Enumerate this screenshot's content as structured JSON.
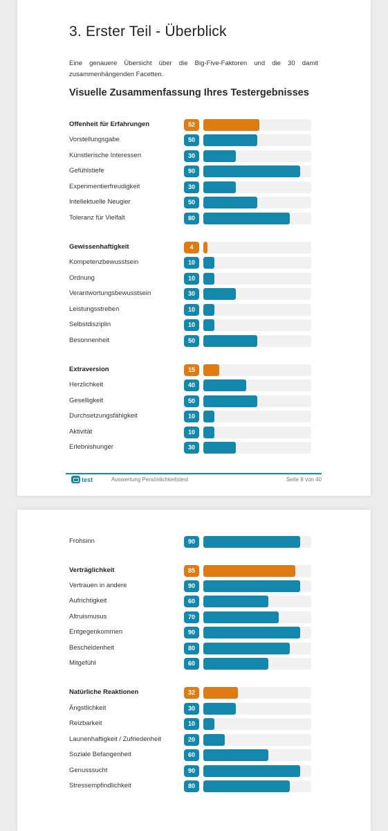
{
  "page1": {
    "heading": "3. Erster Teil - Überblick",
    "intro": "Eine genauere Übersicht über die Big-Five-Faktoren und die 30 damit zusammenhängenden Facetten.",
    "subheading": "Visuelle Zusammenfassung Ihres Testergebnisses",
    "footer": {
      "logo_text": "test",
      "doc_title": "Auswertung Persönlichkeitstest",
      "page_label": "Seite 8 von 40"
    }
  },
  "colors": {
    "factor": "#e07b14",
    "facet": "#1487ad",
    "track": "#f1f1f1"
  },
  "chart_data": {
    "type": "bar",
    "orientation": "horizontal",
    "xlim": [
      0,
      100
    ],
    "groups": [
      {
        "factor": "Offenheit für Erfahrungen",
        "value": 52,
        "facets": [
          {
            "label": "Vorstellungsgabe",
            "value": 50
          },
          {
            "label": "Künstlerische Interessen",
            "value": 30
          },
          {
            "label": "Gefühlstiefe",
            "value": 90
          },
          {
            "label": "Experimentierfreudigkeit",
            "value": 30
          },
          {
            "label": "Intellektuelle Neugier",
            "value": 50
          },
          {
            "label": "Toleranz für Vielfalt",
            "value": 80
          }
        ]
      },
      {
        "factor": "Gewissenhaftigkeit",
        "value": 4,
        "facets": [
          {
            "label": "Kompetenzbewusstsein",
            "value": 10
          },
          {
            "label": "Ordnung",
            "value": 10
          },
          {
            "label": "Verantwortungsbewusstsein",
            "value": 30
          },
          {
            "label": "Leistungsstreben",
            "value": 10
          },
          {
            "label": "Selbstdisziplin",
            "value": 10
          },
          {
            "label": "Besonnenheit",
            "value": 50
          }
        ]
      },
      {
        "factor": "Extraversion",
        "value": 15,
        "facets": [
          {
            "label": "Herzlichkeit",
            "value": 40
          },
          {
            "label": "Geselligkeit",
            "value": 50
          },
          {
            "label": "Durchsetzungsfähigkeit",
            "value": 10
          },
          {
            "label": "Aktivität",
            "value": 10
          },
          {
            "label": "Erlebnishunger",
            "value": 30
          },
          {
            "label": "Frohsinn",
            "value": 90
          }
        ]
      },
      {
        "factor": "Verträglichkeit",
        "value": 85,
        "facets": [
          {
            "label": "Vertrauen in andere",
            "value": 90
          },
          {
            "label": "Aufrichtigkeit",
            "value": 60
          },
          {
            "label": "Altruismusus",
            "value": 70
          },
          {
            "label": "Entgegenkommen",
            "value": 90
          },
          {
            "label": "Bescheidenheit",
            "value": 80
          },
          {
            "label": "Mitgefühl",
            "value": 60
          }
        ]
      },
      {
        "factor": "Natürliche Reaktionen",
        "value": 32,
        "facets": [
          {
            "label": "Ängstlichkeit",
            "value": 30
          },
          {
            "label": "Reizbarkeit",
            "value": 10
          },
          {
            "label": "Launenhaftigkeit / Zufriedenheit",
            "value": 20
          },
          {
            "label": "Soziale Befangenheit",
            "value": 60
          },
          {
            "label": "Genusssucht",
            "value": 90
          },
          {
            "label": "Stressempfindlichkeit",
            "value": 80
          }
        ]
      }
    ]
  }
}
